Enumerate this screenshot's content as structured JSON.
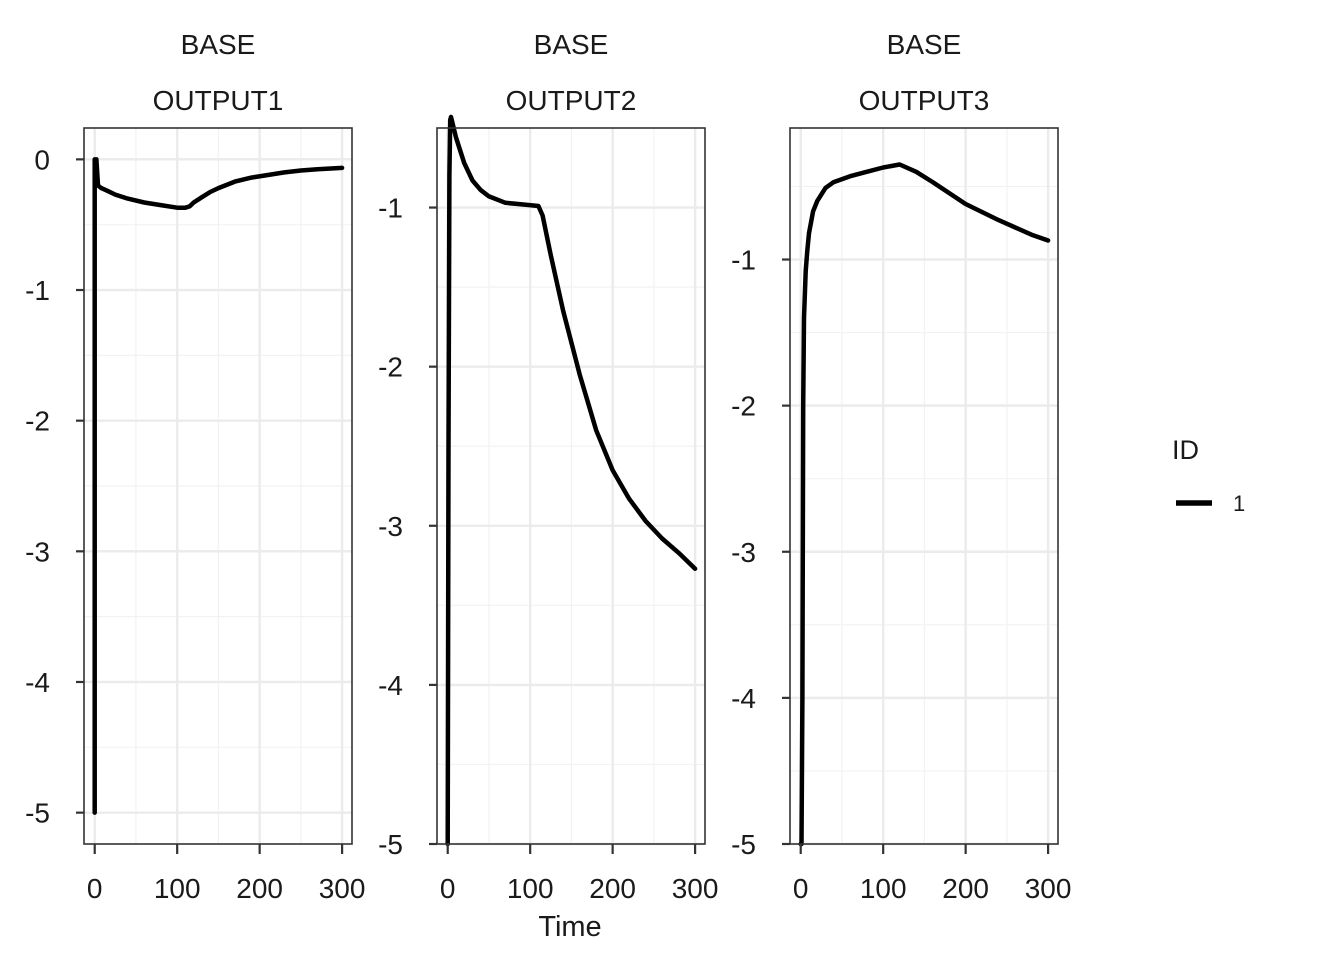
{
  "chart_data": {
    "type": "line",
    "xlabel": "Time",
    "ylabel": "",
    "legend": {
      "title": "ID",
      "placement": "right",
      "entries": [
        {
          "label": "1",
          "color": "#000000"
        }
      ]
    },
    "grid": true,
    "colors": {
      "line": "#000000",
      "grid": "#ebebeb",
      "border": "#333333"
    },
    "panels": [
      {
        "strip_top": "BASE",
        "strip_bottom": "OUTPUT1",
        "xlim": [
          -13,
          312
        ],
        "ylim": [
          -5.24,
          0.24
        ],
        "xticks": [
          0,
          100,
          200,
          300
        ],
        "yticks": [
          0,
          -1,
          -2,
          -3,
          -4,
          -5
        ],
        "series": [
          {
            "x": [
              0,
              0,
              0,
              1,
              2,
              4,
              8,
              15,
              25,
              40,
              60,
              80,
              100,
              110,
              115,
              120,
              130,
              140,
              150,
              170,
              190,
              210,
              230,
              250,
              270,
              300
            ],
            "y": [
              -5,
              0,
              0,
              0,
              0,
              -0.2,
              -0.22,
              -0.24,
              -0.27,
              -0.3,
              -0.33,
              -0.35,
              -0.37,
              -0.37,
              -0.36,
              -0.33,
              -0.29,
              -0.25,
              -0.22,
              -0.17,
              -0.14,
              -0.12,
              -0.1,
              -0.085,
              -0.075,
              -0.065
            ]
          }
        ]
      },
      {
        "strip_top": "BASE",
        "strip_bottom": "OUTPUT2",
        "xlim": [
          -13,
          312
        ],
        "ylim": [
          -5.0,
          -0.5
        ],
        "xticks": [
          0,
          100,
          200,
          300
        ],
        "yticks": [
          -1,
          -2,
          -3,
          -4,
          -5
        ],
        "series": [
          {
            "x": [
              0,
              1,
              2,
              3,
              4,
              10,
              20,
              30,
              40,
              50,
              70,
              90,
              110,
              115,
              125,
              140,
              160,
              180,
              200,
              220,
              240,
              260,
              280,
              300
            ],
            "y": [
              -5,
              -2.5,
              -0.8,
              -0.45,
              -0.43,
              -0.56,
              -0.72,
              -0.83,
              -0.89,
              -0.93,
              -0.97,
              -0.98,
              -0.99,
              -1.05,
              -1.3,
              -1.65,
              -2.05,
              -2.4,
              -2.65,
              -2.83,
              -2.97,
              -3.08,
              -3.17,
              -3.27
            ]
          }
        ]
      },
      {
        "strip_top": "BASE",
        "strip_bottom": "OUTPUT3",
        "xlim": [
          -13,
          312
        ],
        "ylim": [
          -5.0,
          -0.1
        ],
        "xticks": [
          0,
          100,
          200,
          300
        ],
        "yticks": [
          -1,
          -2,
          -3,
          -4,
          -5
        ],
        "series": [
          {
            "x": [
              0,
              1,
              2,
              3,
              4,
              6,
              8,
              10,
              15,
              20,
              30,
              40,
              60,
              80,
              100,
              110,
              120,
              140,
              160,
              200,
              240,
              280,
              300
            ],
            "y": [
              -5,
              -5,
              -4,
              -2,
              -1.4,
              -1.08,
              -0.94,
              -0.82,
              -0.67,
              -0.6,
              -0.51,
              -0.47,
              -0.43,
              -0.4,
              -0.37,
              -0.36,
              -0.35,
              -0.4,
              -0.47,
              -0.62,
              -0.73,
              -0.83,
              -0.87
            ]
          }
        ]
      }
    ]
  }
}
